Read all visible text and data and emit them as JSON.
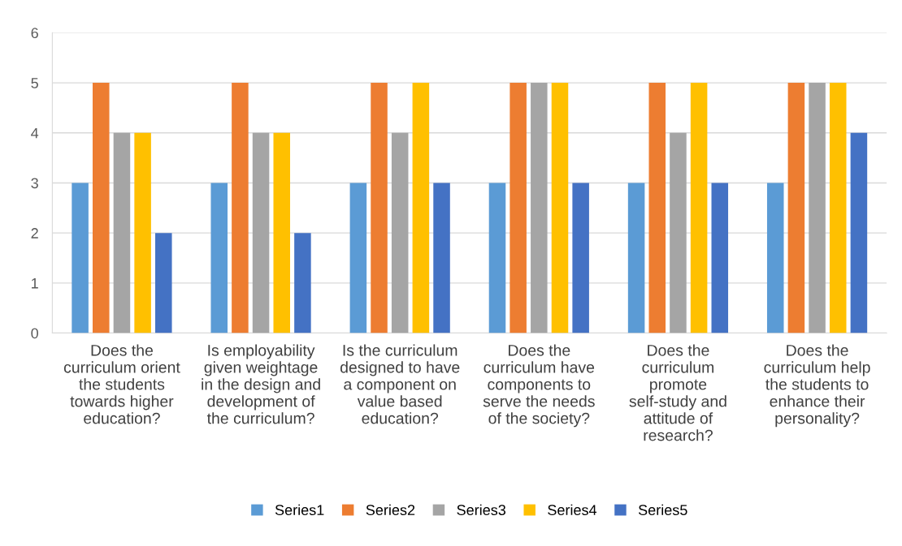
{
  "chart_data": {
    "type": "bar",
    "categories": [
      "Does the curriculum orient the students towards higher education?",
      "Is employability given weightage in the design and development of the curriculum?",
      "Is the curriculum designed to have a component on value based education?",
      "Does the curriculum have components to serve the needs of the society?",
      "Does the curriculum promote self-study and attitude of research?",
      "Does the curriculum help the students to enhance their personality?"
    ],
    "series": [
      {
        "name": "Series1",
        "color": "#5b9bd5",
        "values": [
          3,
          3,
          3,
          3,
          3,
          3
        ]
      },
      {
        "name": "Series2",
        "color": "#ed7d31",
        "values": [
          5,
          5,
          5,
          5,
          5,
          5
        ]
      },
      {
        "name": "Series3",
        "color": "#a5a5a5",
        "values": [
          4,
          4,
          4,
          5,
          4,
          5
        ]
      },
      {
        "name": "Series4",
        "color": "#ffc000",
        "values": [
          4,
          4,
          5,
          5,
          5,
          5
        ]
      },
      {
        "name": "Series5",
        "color": "#4472c4",
        "values": [
          2,
          2,
          3,
          3,
          3,
          4
        ]
      }
    ],
    "ylim": [
      0,
      6
    ],
    "yticks": [
      0,
      1,
      2,
      3,
      4,
      5,
      6
    ],
    "grid": "y",
    "legend": "bottom"
  }
}
